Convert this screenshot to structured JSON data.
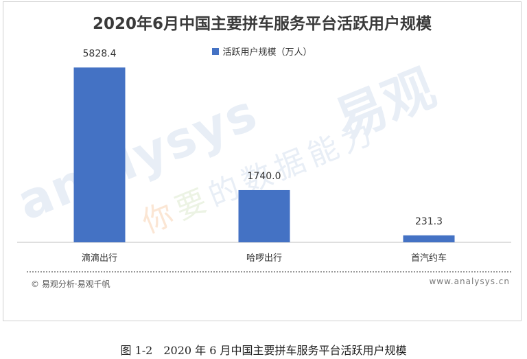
{
  "chart_data": {
    "type": "bar",
    "title": "2020年6月中国主要拼车服务平台活跃用户规模",
    "categories": [
      "滴滴出行",
      "哈啰出行",
      "首汽约车"
    ],
    "series": [
      {
        "name": "活跃用户规模（万人）",
        "values": [
          5828.4,
          1740.0,
          231.3
        ],
        "color": "#4472c4"
      }
    ],
    "value_labels": [
      "5828.4",
      "1740.0",
      "231.3"
    ],
    "legend": "top-center",
    "grid": false,
    "ylim": [
      0,
      6500
    ]
  },
  "watermark": {
    "latin": "analysys",
    "brand": "易观",
    "slogan_1": "你",
    "slogan_2": "要",
    "slogan_3": "的数据能力"
  },
  "footer": {
    "source": "© 易观分析·易观千帆",
    "site": "www.analysys.cn"
  },
  "caption": "图 1-2　2020 年 6 月中国主要拼车服务平台活跃用户规模"
}
